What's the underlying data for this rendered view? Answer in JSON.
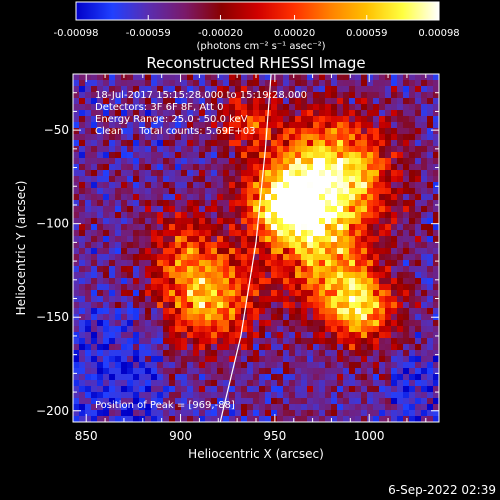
{
  "colorbar": {
    "tick_labels": [
      "-0.00098",
      "-0.00059",
      "-0.00020",
      "0.00020",
      "0.00059",
      "0.00098"
    ],
    "unit_label": "(photons cm⁻² s⁻¹ asec⁻²)",
    "range": [
      -0.00098,
      0.00098
    ],
    "stops": [
      "#0000c8",
      "#2040ff",
      "#5a2db0",
      "#7a1a6a",
      "#8a0000",
      "#d00000",
      "#ff3000",
      "#ff8000",
      "#ffc000",
      "#ffff40",
      "#ffffff"
    ]
  },
  "chart_data": {
    "type": "heatmap",
    "title": "Reconstructed RHESSI Image",
    "xlabel": "Heliocentric X (arcsec)",
    "ylabel": "Heliocentric Y (arcsec)",
    "xlim": [
      843,
      1037
    ],
    "ylim": [
      -206,
      -20
    ],
    "x_ticks": [
      850,
      900,
      950,
      1000
    ],
    "y_ticks": [
      -50,
      -100,
      -150,
      -200
    ],
    "x_tick_labels": [
      "850",
      "900",
      "950",
      "1000"
    ],
    "y_tick_labels": [
      "−50",
      "−100",
      "−150",
      "−200"
    ],
    "peak_position": [
      969,
      -88
    ],
    "annotations": [
      "18-Jul-2017 15:15:28.000 to 15:19:28.000",
      "Detectors: 3F 6F 8F, Att 0",
      "Energy Range: 25.0 - 50.0 keV",
      "Clean     Total counts: 5.69E+03"
    ],
    "peak_label": "Position of Peak = [969,-88]",
    "limb_curve": [
      [
        921,
        -206
      ],
      [
        932,
        -160
      ],
      [
        940,
        -110
      ],
      [
        945,
        -60
      ],
      [
        948,
        -20
      ]
    ],
    "sources": [
      {
        "x": 980,
        "y": -75,
        "sigma": 22,
        "amp": 1.0
      },
      {
        "x": 955,
        "y": -90,
        "sigma": 14,
        "amp": 0.85
      },
      {
        "x": 915,
        "y": -140,
        "sigma": 18,
        "amp": 0.75
      },
      {
        "x": 995,
        "y": -145,
        "sigma": 14,
        "amp": 0.8
      },
      {
        "x": 975,
        "y": -120,
        "sigma": 18,
        "amp": 0.55
      },
      {
        "x": 935,
        "y": -45,
        "sigma": 12,
        "amp": 0.45
      },
      {
        "x": 900,
        "y": -110,
        "sigma": 16,
        "amp": 0.35
      }
    ]
  },
  "timestamp": "6-Sep-2022 02:39"
}
